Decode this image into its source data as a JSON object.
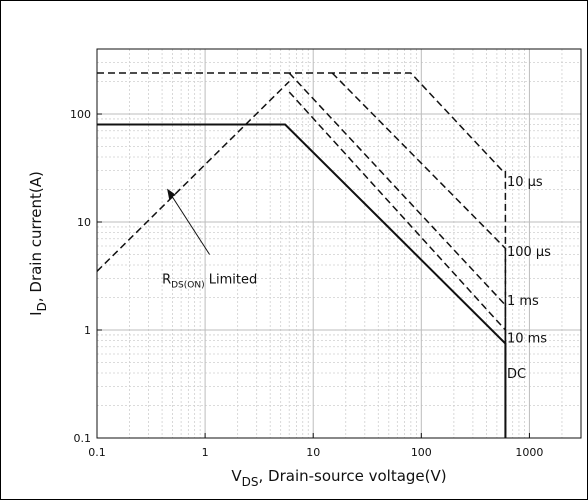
{
  "chart_data": {
    "type": "line",
    "title": "",
    "xlabel": {
      "main": "V",
      "sub": "DS",
      "rest": ", Drain-source voltage(V)"
    },
    "ylabel": {
      "main": "I",
      "sub": "D",
      "rest": ", Drain current(A)"
    },
    "x_scale": "log",
    "y_scale": "log",
    "xlim": [
      0.1,
      3000
    ],
    "ylim": [
      0.1,
      400
    ],
    "x_ticks": [
      0.1,
      1,
      10,
      100,
      1000
    ],
    "x_tick_labels": [
      "0.1",
      "1",
      "10",
      "100",
      "1000"
    ],
    "y_ticks": [
      0.1,
      1,
      10,
      100
    ],
    "y_tick_labels": [
      "0.1",
      "1",
      "10",
      "100"
    ],
    "grid": true,
    "series": [
      {
        "name": "10 µs",
        "style": "dashed",
        "points": [
          [
            0.1,
            240
          ],
          [
            80,
            240
          ],
          [
            560,
            30
          ],
          [
            600,
            30
          ],
          [
            600,
            0.1
          ]
        ]
      },
      {
        "name": "100 µs",
        "style": "dashed",
        "points": [
          [
            15,
            240
          ],
          [
            600,
            5.7
          ],
          [
            600,
            0.1
          ]
        ]
      },
      {
        "name": "1 ms",
        "style": "dashed",
        "points": [
          [
            6,
            240
          ],
          [
            600,
            1.7
          ],
          [
            600,
            0.1
          ]
        ]
      },
      {
        "name": "10 ms",
        "style": "dashed",
        "points": [
          [
            6,
            160
          ],
          [
            600,
            1.0
          ],
          [
            600,
            0.1
          ]
        ]
      },
      {
        "name": "DC",
        "style": "solid",
        "points": [
          [
            0.1,
            80
          ],
          [
            5.5,
            80
          ],
          [
            600,
            0.75
          ],
          [
            600,
            0.1
          ]
        ]
      }
    ],
    "rds_limit": {
      "points": [
        [
          0.1,
          3.5
        ],
        [
          6,
          200
        ]
      ]
    },
    "annotations": [
      {
        "text": "10 µs",
        "x": 620,
        "y": 24
      },
      {
        "text": "100 µs",
        "x": 620,
        "y": 5.4
      },
      {
        "text": "1 ms",
        "x": 620,
        "y": 1.9
      },
      {
        "text": "10 ms",
        "x": 620,
        "y": 0.85
      },
      {
        "text": "DC",
        "x": 620,
        "y": 0.4
      }
    ],
    "rds_label": {
      "main": "R",
      "sub": "DS(ON)",
      "rest": " Limited"
    },
    "rds_arrow": {
      "from": [
        1.1,
        5.0
      ],
      "to": [
        0.45,
        20
      ]
    }
  }
}
